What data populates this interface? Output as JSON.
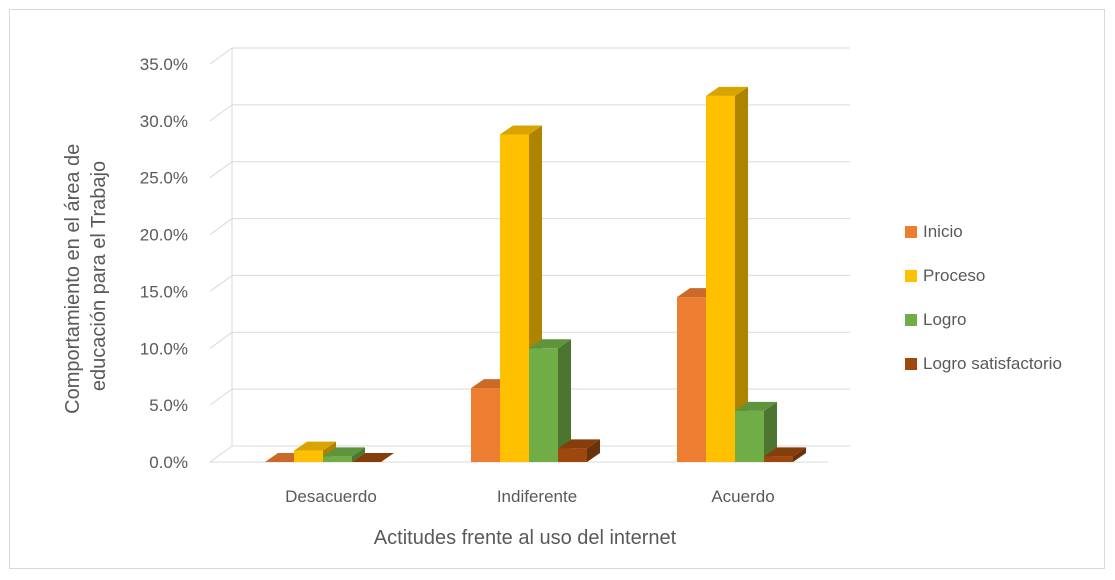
{
  "chart_data": {
    "type": "bar",
    "variant": "3d-clustered-column",
    "categories": [
      "Desacuerdo",
      "Indiferente",
      "Acuerdo"
    ],
    "series": [
      {
        "name": "Inicio",
        "color": "#ED7D31",
        "values": [
          0.0,
          6.5,
          14.5
        ]
      },
      {
        "name": "Proceso",
        "color": "#FFC000",
        "values": [
          1.0,
          28.8,
          32.2
        ]
      },
      {
        "name": "Logro",
        "color": "#70AD47",
        "values": [
          0.5,
          10.0,
          4.5
        ]
      },
      {
        "name": "Logro satisfactorio",
        "color": "#9E480E",
        "values": [
          0.0,
          1.2,
          0.5
        ]
      }
    ],
    "y_ticks": [
      "0.0%",
      "5.0%",
      "10.0%",
      "15.0%",
      "20.0%",
      "25.0%",
      "30.0%",
      "35.0%"
    ],
    "ylim": [
      0,
      35
    ],
    "xlabel": "Actitudes frente al uso del internet",
    "ylabel_lines": [
      "Comportamiento en el área de",
      "educación para el Trabajo"
    ],
    "grid": true,
    "legend_position": "right"
  }
}
